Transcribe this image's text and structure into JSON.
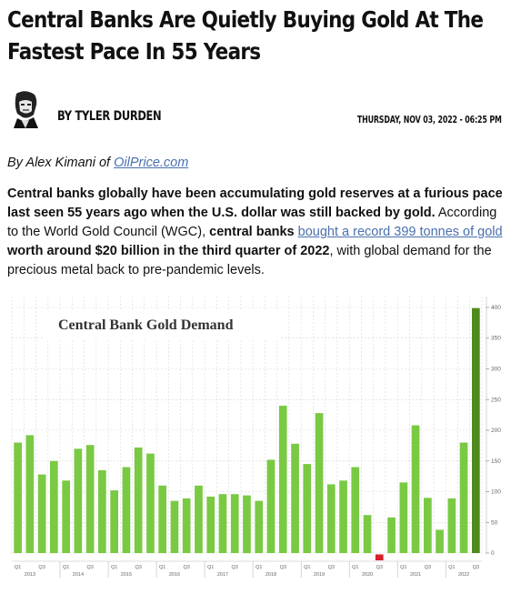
{
  "article": {
    "title_line1": "Central Banks Are Quietly Buying Gold At The",
    "title_line2": "Fastest Pace In 55 Years",
    "author": "BY TYLER DURDEN",
    "date": "THURSDAY, NOV 03, 2022 - 06:25 PM",
    "source_prefix": "By Alex Kimani of ",
    "source_link": "OilPrice.com",
    "p_bold1": "Central banks globally have been accumulating gold reserves at a furious pace last seen 55 years ago when the U.S. dollar was still backed by gold.",
    "p_text1": " According to the World Gold Council (WGC), ",
    "p_bold2": "central banks ",
    "p_link": "bought a record 399 tonnes of gold ",
    "p_bold3": "worth around $20 billion in the third quarter of 2022",
    "p_text2": ", with global demand for the precious metal back to pre-pandemic levels."
  },
  "colors": {
    "bar": "#7ac943",
    "bar_last": "#4f8a1d",
    "bar_negative": "#d9202a",
    "link": "#4a6fae"
  },
  "chart_data": {
    "type": "bar",
    "title": "Central Bank Gold Demand",
    "ylim": [
      -20,
      400
    ],
    "yticks": [
      0,
      50,
      100,
      150,
      200,
      250,
      300,
      350,
      400
    ],
    "grid": true,
    "categories": [
      "Q1 2013",
      "Q2 2013",
      "Q3 2013",
      "Q4 2013",
      "Q1 2014",
      "Q2 2014",
      "Q3 2014",
      "Q4 2014",
      "Q1 2015",
      "Q2 2015",
      "Q3 2015",
      "Q4 2015",
      "Q1 2016",
      "Q2 2016",
      "Q3 2016",
      "Q4 2016",
      "Q1 2017",
      "Q2 2017",
      "Q3 2017",
      "Q4 2017",
      "Q1 2018",
      "Q2 2018",
      "Q3 2018",
      "Q4 2018",
      "Q1 2019",
      "Q2 2019",
      "Q3 2019",
      "Q4 2019",
      "Q1 2020",
      "Q2 2020",
      "Q3 2020",
      "Q4 2020",
      "Q1 2021",
      "Q2 2021",
      "Q3 2021",
      "Q4 2021",
      "Q1 2022",
      "Q2 2022",
      "Q3 2022"
    ],
    "values": [
      180,
      192,
      128,
      150,
      118,
      170,
      176,
      135,
      102,
      140,
      172,
      162,
      110,
      85,
      89,
      110,
      92,
      96,
      96,
      94,
      85,
      152,
      240,
      178,
      145,
      228,
      112,
      118,
      140,
      62,
      -12,
      58,
      115,
      208,
      90,
      38,
      89,
      180,
      399
    ],
    "quarter_labels": [
      "Q1",
      "Q3"
    ],
    "years": [
      "2013",
      "2014",
      "2015",
      "2016",
      "2017",
      "2018",
      "2019",
      "2020",
      "2021",
      "2022"
    ]
  }
}
